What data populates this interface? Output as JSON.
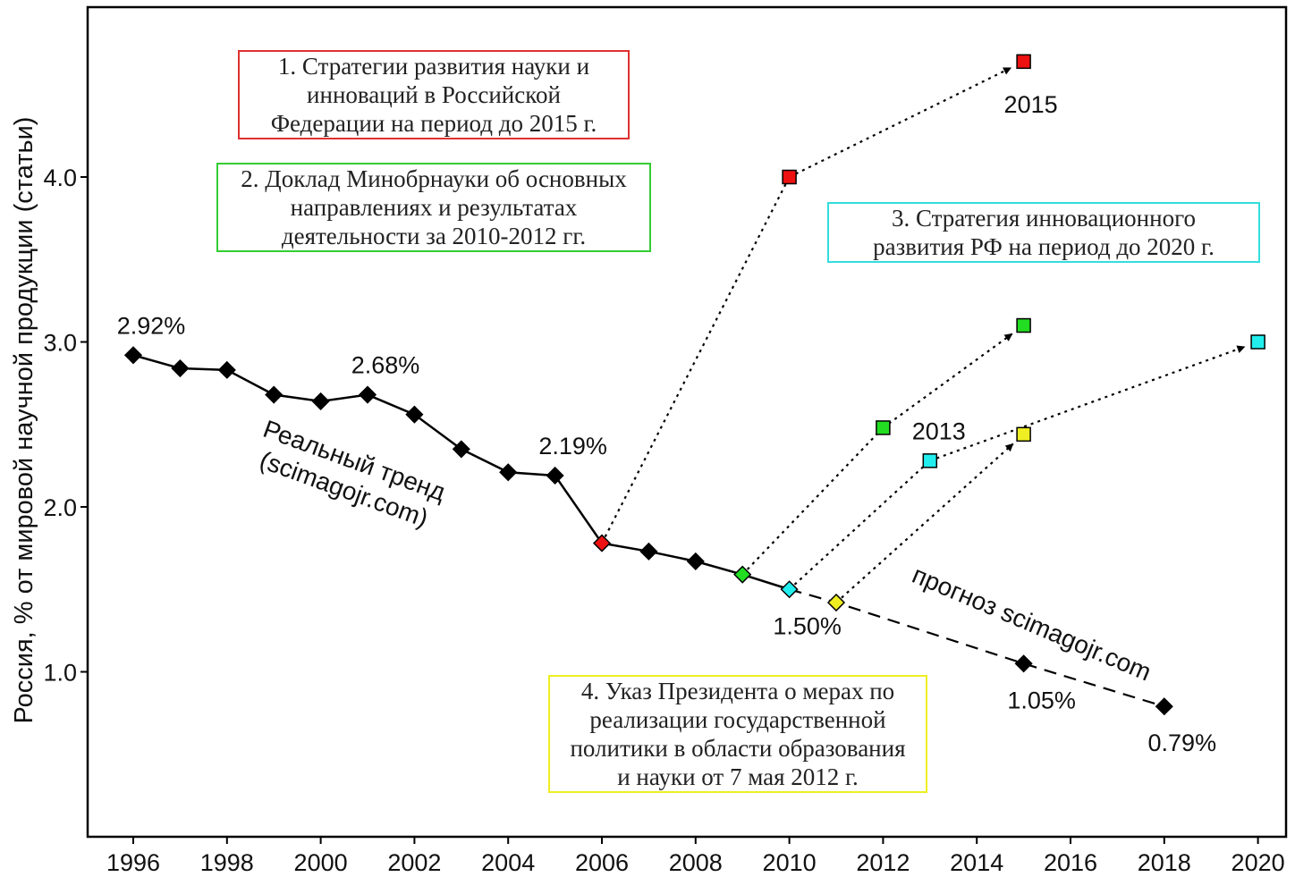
{
  "colors": {
    "actual": "#000000",
    "strategy1": "#ee1111",
    "strategy2": "#22dd22",
    "strategy3": "#22eeee",
    "strategy4": "#eeee22"
  },
  "chart_data": {
    "type": "line",
    "ylabel": "Россия, % от мировой научной продукции (статьи)",
    "xlim": [
      1995,
      2021
    ],
    "ylim": [
      0,
      5.0
    ],
    "xticks": [
      "1996",
      "1998",
      "2000",
      "2002",
      "2004",
      "2006",
      "2008",
      "2010",
      "2012",
      "2014",
      "2016",
      "2018",
      "2020"
    ],
    "yticks": [
      "1.0",
      "2.0",
      "3.0",
      "4.0"
    ],
    "grid": false,
    "actual_series": {
      "x": [
        1996,
        1997,
        1998,
        1999,
        2000,
        2001,
        2002,
        2003,
        2004,
        2005,
        2006,
        2007,
        2008,
        2009,
        2010
      ],
      "y": [
        2.92,
        2.84,
        2.83,
        2.68,
        2.64,
        2.68,
        2.56,
        2.35,
        2.21,
        2.19,
        1.78,
        1.73,
        1.67,
        1.59,
        1.5
      ]
    },
    "forecast_series": {
      "x": [
        2010,
        2011,
        2015,
        2018
      ],
      "y": [
        1.5,
        1.42,
        1.05,
        0.79
      ]
    },
    "trend_label": [
      "Реальный тренд",
      "(scimagojr.com)"
    ],
    "forecast_label": "прогноз scimagojr.com",
    "point_labels": [
      {
        "x": 1996,
        "y": 2.92,
        "text": "2.92%",
        "pos": "above"
      },
      {
        "x": 2001,
        "y": 2.68,
        "text": "2.68%",
        "pos": "above"
      },
      {
        "x": 2005,
        "y": 2.19,
        "text": "2.19%",
        "pos": "above"
      },
      {
        "x": 2010,
        "y": 1.5,
        "text": "1.50%",
        "pos": "below"
      },
      {
        "x": 2015,
        "y": 1.05,
        "text": "1.05%",
        "pos": "below"
      },
      {
        "x": 2018,
        "y": 0.79,
        "text": "0.79%",
        "pos": "below"
      }
    ],
    "strategies": [
      {
        "id": "1",
        "color_key": "strategy1",
        "start": {
          "x": 2006,
          "y": 1.78
        },
        "targets": [
          {
            "x": 2010,
            "y": 4.0
          },
          {
            "x": 2015,
            "y": 4.7,
            "label": "2015"
          }
        ]
      },
      {
        "id": "2",
        "color_key": "strategy2",
        "start": {
          "x": 2009,
          "y": 1.59
        },
        "targets": [
          {
            "x": 2012,
            "y": 2.48
          },
          {
            "x": 2015,
            "y": 3.1
          }
        ]
      },
      {
        "id": "3",
        "color_key": "strategy3",
        "start": {
          "x": 2010,
          "y": 1.5
        },
        "targets": [
          {
            "x": 2013,
            "y": 2.28,
            "label": "2013"
          },
          {
            "x": 2020,
            "y": 3.0
          }
        ]
      },
      {
        "id": "4",
        "color_key": "strategy4",
        "start": {
          "x": 2011,
          "y": 1.42
        },
        "targets": [
          {
            "x": 2015,
            "y": 2.44
          }
        ]
      }
    ],
    "legend_boxes": [
      {
        "id": "box1",
        "color_key": "strategy1",
        "text": "1. Стратегии развития науки и\nинноваций в Российской\nФедерации на период до 2015 г."
      },
      {
        "id": "box2",
        "color_key": "strategy2",
        "text": "2. Доклад Минобрнауки об основных\nнаправлениях и результатах\nдеятельности за 2010-2012 гг."
      },
      {
        "id": "box3",
        "color_key": "strategy3",
        "text": "3. Стратегия инновационного\nразвития РФ на период до 2020 г."
      },
      {
        "id": "box4",
        "color_key": "strategy4",
        "text": "4. Указ Президента о мерах по\nреализации государственной\nполитики в области образования\nи науки от 7 мая 2012 г."
      }
    ]
  }
}
